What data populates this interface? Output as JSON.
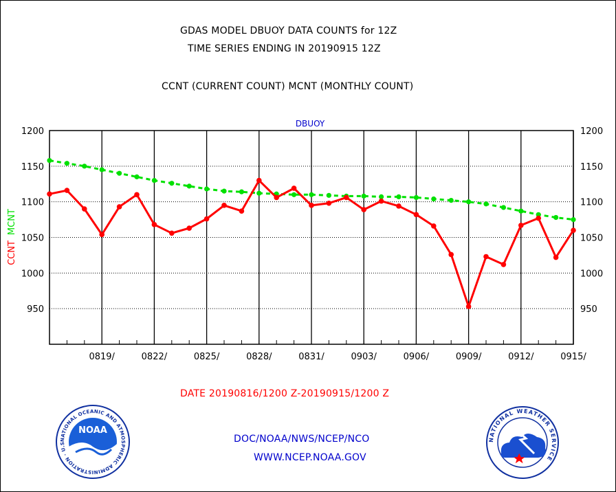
{
  "header": {
    "title_line1": "GDAS MODEL DBUOY DATA COUNTS for 12Z",
    "title_line2": "TIME SERIES ENDING IN 20190915 12Z",
    "subtitle": "CCNT (CURRENT COUNT) MCNT (MONTHLY COUNT)"
  },
  "footer": {
    "date_range": "DATE 20190816/1200 Z-20190915/1200 Z",
    "org_line": "DOC/NOAA/NWS/NCEP/NCO",
    "url": "WWW.NCEP.NOAA.GOV"
  },
  "logos": {
    "noaa": {
      "label": "NOAA",
      "ring_text": "NATIONAL OCEANIC AND ATMOSPHERIC ADMINISTRATION · U.S. DEPARTMENT OF COMMERCE"
    },
    "nws": {
      "ring_text": "NATIONAL WEATHER SERVICE"
    }
  },
  "colors": {
    "ccnt": "#ff0000",
    "mcnt": "#00e000",
    "panel_label": "#0000cc",
    "date_text": "#ff0000",
    "footer_text": "#0000cc"
  },
  "chart_data": {
    "type": "line",
    "panel_label": "DBUOY",
    "ylabel_parts": [
      {
        "text": "CCNT",
        "color": "#ff0000"
      },
      {
        "text": "MCNT",
        "color": "#00e000"
      }
    ],
    "ylim": [
      900,
      1200
    ],
    "yticks": [
      950,
      1000,
      1050,
      1100,
      1150,
      1200
    ],
    "y_gridlines": [
      950,
      1000,
      1050,
      1100,
      1150
    ],
    "xlim": [
      "2019-08-16",
      "2019-09-15"
    ],
    "xtick_labels": [
      "0819/",
      "0822/",
      "0825/",
      "0828/",
      "0831/",
      "0903/",
      "0906/",
      "0909/",
      "0912/",
      "0915/"
    ],
    "xtick_dates": [
      "2019-08-19",
      "2019-08-22",
      "2019-08-25",
      "2019-08-28",
      "2019-08-31",
      "2019-09-03",
      "2019-09-06",
      "2019-09-09",
      "2019-09-12",
      "2019-09-15"
    ],
    "x": [
      "2019-08-16",
      "2019-08-17",
      "2019-08-18",
      "2019-08-19",
      "2019-08-20",
      "2019-08-21",
      "2019-08-22",
      "2019-08-23",
      "2019-08-24",
      "2019-08-25",
      "2019-08-26",
      "2019-08-27",
      "2019-08-28",
      "2019-08-29",
      "2019-08-30",
      "2019-08-31",
      "2019-09-01",
      "2019-09-02",
      "2019-09-03",
      "2019-09-04",
      "2019-09-05",
      "2019-09-06",
      "2019-09-07",
      "2019-09-08",
      "2019-09-09",
      "2019-09-10",
      "2019-09-11",
      "2019-09-12",
      "2019-09-13",
      "2019-09-14",
      "2019-09-15"
    ],
    "grid": true,
    "series": [
      {
        "name": "CCNT",
        "color": "#ff0000",
        "style": "solid",
        "values": [
          1111,
          1116,
          1090,
          1054,
          1093,
          1110,
          1068,
          1056,
          1063,
          1076,
          1095,
          1087,
          1130,
          1106,
          1119,
          1095,
          1098,
          1106,
          1089,
          1101,
          1094,
          1082,
          1066,
          1026,
          953,
          1023,
          1012,
          1067,
          1077,
          1022,
          1060
        ]
      },
      {
        "name": "MCNT",
        "color": "#00e000",
        "style": "dashed",
        "values": [
          1158,
          1154,
          1150,
          1145,
          1140,
          1135,
          1130,
          1126,
          1122,
          1118,
          1115,
          1114,
          1112,
          1111,
          1110,
          1110,
          1109,
          1108,
          1108,
          1107,
          1107,
          1106,
          1104,
          1102,
          1100,
          1097,
          1092,
          1087,
          1082,
          1078,
          1075
        ]
      }
    ]
  }
}
